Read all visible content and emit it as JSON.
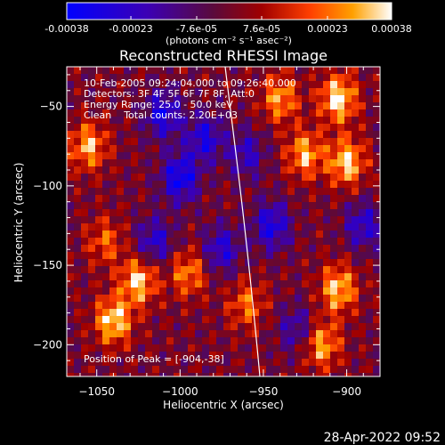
{
  "title": "Reconstructed RHESSI Image",
  "info_lines": [
    "10-Feb-2005 09:24:04.000 to 09:26:40.000",
    "Detectors: 3F 4F 5F 6F 7F 8F, Att:0",
    "Energy Range: 25.0 - 50.0 keV",
    "Clean    Total counts: 2.20E+03"
  ],
  "peak_label": "Position of Peak = [-904,-38]",
  "timestamp": "28-Apr-2022 09:52",
  "colorbar": {
    "tick_labels": [
      "-0.00038",
      "-0.00023",
      "-7.6e-05",
      "7.6e-05",
      "0.00023",
      "0.00038"
    ],
    "tick_values": [
      -0.00038,
      -0.00023,
      -7.6e-05,
      7.6e-05,
      0.00023,
      0.00038
    ],
    "range": [
      -0.00038,
      0.00038
    ],
    "unit_label": "(photons cm⁻² s⁻¹ asec⁻²)"
  },
  "chart_data": {
    "type": "heatmap",
    "title": "Reconstructed RHESSI Image",
    "xlabel": "Heliocentric X (arcsec)",
    "ylabel": "Heliocentric Y (arcsec)",
    "xlim": [
      -1068,
      -880
    ],
    "ylim": [
      -220,
      -25
    ],
    "x_ticks": [
      -1050,
      -1000,
      -950,
      -900
    ],
    "y_ticks": [
      -50,
      -100,
      -150,
      -200
    ],
    "x_tick_labels": [
      "−1050",
      "−1000",
      "−950",
      "−900"
    ],
    "y_tick_labels": [
      "−50",
      "−100",
      "−150",
      "−200"
    ],
    "peak": [
      -904,
      -38
    ],
    "value_range": [
      -0.00038,
      0.00038
    ],
    "hot_spots": [
      {
        "x": -1040,
        "y": -185,
        "value": 0.00036
      },
      {
        "x": -1055,
        "y": -75,
        "value": 0.0003
      },
      {
        "x": -1025,
        "y": -160,
        "value": 0.00034
      },
      {
        "x": -995,
        "y": -155,
        "value": 0.00025
      },
      {
        "x": -905,
        "y": -45,
        "value": 0.00038
      },
      {
        "x": -900,
        "y": -85,
        "value": 0.00035
      },
      {
        "x": -925,
        "y": -80,
        "value": 0.0003
      },
      {
        "x": -905,
        "y": -165,
        "value": 0.00033
      },
      {
        "x": -915,
        "y": -200,
        "value": 0.0003
      },
      {
        "x": -940,
        "y": -45,
        "value": 0.00028
      },
      {
        "x": -960,
        "y": -175,
        "value": 0.00022
      },
      {
        "x": -1045,
        "y": -135,
        "value": 0.0002
      }
    ],
    "cold_spots": [
      {
        "x": -1010,
        "y": -55,
        "value": -0.0003
      },
      {
        "x": -1000,
        "y": -95,
        "value": -0.00035
      },
      {
        "x": -985,
        "y": -70,
        "value": -0.00028
      },
      {
        "x": -1015,
        "y": -135,
        "value": -0.00025
      },
      {
        "x": -945,
        "y": -125,
        "value": -0.0003
      },
      {
        "x": -890,
        "y": -125,
        "value": -0.00025
      },
      {
        "x": -960,
        "y": -80,
        "value": -0.00022
      },
      {
        "x": -930,
        "y": -190,
        "value": -0.0002
      },
      {
        "x": -975,
        "y": -140,
        "value": -0.00026
      }
    ]
  }
}
